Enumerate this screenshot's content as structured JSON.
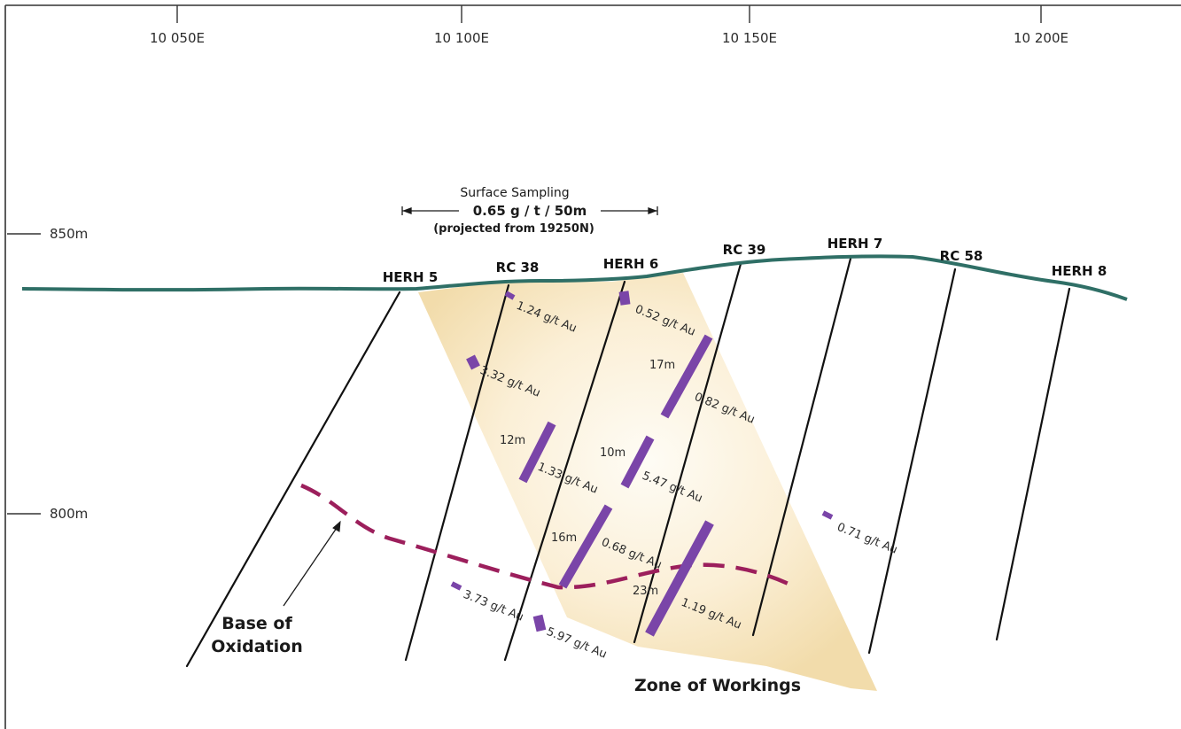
{
  "colors": {
    "surface": "#2f6f66",
    "drillhole": "#111111",
    "intercept": "#7a45a8",
    "oxidation": "#9c1f5c",
    "zone_light": "#fdf6e6",
    "zone_dark": "#f3dfb1",
    "frame": "#333333"
  },
  "grid": {
    "eastings": [
      "10 050E",
      "10 100E",
      "10 150E",
      "10 200E"
    ],
    "elevations": [
      "850m",
      "800m"
    ]
  },
  "surface_sampling": {
    "title": "Surface Sampling",
    "grade": "0.65 g / t / 50m",
    "note": "(projected from 19250N)"
  },
  "holes": [
    "HERH 5",
    "RC 38",
    "HERH 6",
    "RC 39",
    "HERH 7",
    "RC 58",
    "HERH 8"
  ],
  "intercepts": [
    {
      "hole": "RC 38",
      "grade": "1.24 g/t Au",
      "length": ""
    },
    {
      "hole": "RC 38",
      "grade": "3.32 g/t Au",
      "length": ""
    },
    {
      "hole": "RC 38",
      "grade": "1.33 g/t Au",
      "length": "12m"
    },
    {
      "hole": "RC 38",
      "grade": "3.73 g/t Au",
      "length": ""
    },
    {
      "hole": "RC 38",
      "grade": "5.97 g/t Au",
      "length": ""
    },
    {
      "hole": "HERH 6",
      "grade": "0.52 g/t Au",
      "length": ""
    },
    {
      "hole": "HERH 6",
      "grade": "5.47 g/t Au",
      "length": "10m"
    },
    {
      "hole": "HERH 6",
      "grade": "0.68 g/t Au",
      "length": "16m"
    },
    {
      "hole": "RC 39",
      "grade": "0.82 g/t Au",
      "length": "17m"
    },
    {
      "hole": "RC 39",
      "grade": "1.19 g/t Au",
      "length": "23m"
    },
    {
      "hole": "HERH 7",
      "grade": "0.71 g/t Au",
      "length": ""
    }
  ],
  "labels": {
    "base_of_oxidation_line1": "Base of",
    "base_of_oxidation_line2": "Oxidation",
    "zone_of_workings": "Zone of Workings"
  }
}
